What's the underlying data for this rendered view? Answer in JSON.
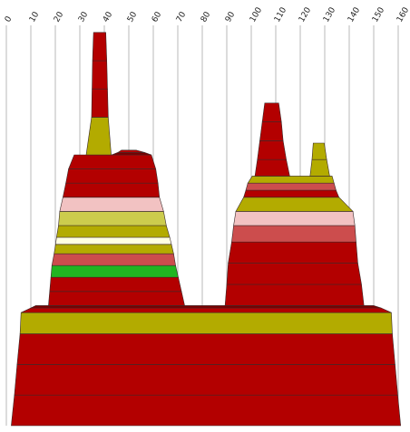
{
  "chart_data": {
    "type": "area",
    "title": "",
    "xlabel": "",
    "ylabel": "",
    "xlim": [
      0,
      160
    ],
    "x_ticks": [
      0,
      10,
      20,
      30,
      40,
      50,
      60,
      70,
      80,
      90,
      100,
      110,
      120,
      130,
      140,
      150,
      160
    ],
    "x_tick_labels": [
      "0",
      "10",
      "20",
      "30",
      "40",
      "50",
      "60",
      "70",
      "80",
      "90",
      "100",
      "110",
      "120",
      "130",
      "140",
      "150",
      "160"
    ],
    "grid": true,
    "legend": "none",
    "shapes": [
      {
        "name": "base",
        "levels": [
          {
            "y": 0,
            "x_left": 2,
            "x_right": 161,
            "color": "#b30000"
          },
          {
            "y": 13,
            "x_left": 3.3,
            "x_right": 159.8,
            "color": "#b30000"
          },
          {
            "y": 26,
            "x_left": 4.4,
            "x_right": 158.7,
            "color": "#b30000"
          },
          {
            "y": 39,
            "x_left": 5.6,
            "x_right": 157.6,
            "color": "#b3ab00"
          },
          {
            "y": 48,
            "x_left": 6.0,
            "x_right": 157.2,
            "color": "#b30000"
          },
          {
            "y": 50,
            "x_left": 10.0,
            "x_right": 153.0,
            "color": "#7a0000"
          },
          {
            "y": 51,
            "x_left": 12.0,
            "x_right": 150.0,
            "color": null
          }
        ]
      },
      {
        "name": "left-peak",
        "levels": [
          {
            "y": 51,
            "x_left": 17.2,
            "x_right": 72.8,
            "color": "#b30000"
          },
          {
            "y": 57,
            "x_left": 17.7,
            "x_right": 71.5,
            "color": "#b30000"
          },
          {
            "y": 63,
            "x_left": 18.2,
            "x_right": 70.2,
            "color": "#21b521"
          },
          {
            "y": 68,
            "x_left": 18.6,
            "x_right": 69.1,
            "color": "#cc4d4d"
          },
          {
            "y": 73,
            "x_left": 19.5,
            "x_right": 68.3,
            "color": "#b3ab00"
          },
          {
            "y": 77,
            "x_left": 20.1,
            "x_right": 67.4,
            "color": "#ffffe0"
          },
          {
            "y": 80,
            "x_left": 20.5,
            "x_right": 66.7,
            "color": "#b3ab00"
          },
          {
            "y": 85,
            "x_left": 21.3,
            "x_right": 65.3,
            "color": "#cccc4d"
          },
          {
            "y": 91,
            "x_left": 21.8,
            "x_right": 64.2,
            "color": "#f2c2c2"
          },
          {
            "y": 97,
            "x_left": 23.1,
            "x_right": 62.5,
            "color": "#b30000"
          },
          {
            "y": 103,
            "x_left": 24.3,
            "x_right": 61.9,
            "color": "#b30000"
          },
          {
            "y": 109,
            "x_left": 25.4,
            "x_right": 61.0,
            "color": "#b30000"
          },
          {
            "y": 115,
            "x_left": 27.7,
            "x_right": 59.2,
            "color": null
          }
        ]
      },
      {
        "name": "left-peak-shoulder",
        "levels": [
          {
            "y": 115,
            "x_left": 43.0,
            "x_right": 59.2,
            "color": "#7a0000"
          },
          {
            "y": 116,
            "x_left": 45.5,
            "x_right": 56.5,
            "color": "#b30000"
          },
          {
            "y": 117,
            "x_left": 47.0,
            "x_right": 53.0,
            "color": null
          }
        ]
      },
      {
        "name": "left-spire",
        "levels": [
          {
            "y": 115,
            "x_left": 32.6,
            "x_right": 42.8,
            "color": "#b3ab00"
          },
          {
            "y": 131,
            "x_left": 34.8,
            "x_right": 41.6,
            "color": "#b30000"
          },
          {
            "y": 143,
            "x_left": 35.0,
            "x_right": 41.3,
            "color": "#b30000"
          },
          {
            "y": 155,
            "x_left": 35.2,
            "x_right": 41.0,
            "color": "#b30000"
          },
          {
            "y": 167,
            "x_left": 35.6,
            "x_right": 40.6,
            "color": null
          }
        ]
      },
      {
        "name": "right-peak",
        "levels": [
          {
            "y": 51,
            "x_left": 89.3,
            "x_right": 146.0,
            "color": "#b30000"
          },
          {
            "y": 60,
            "x_left": 90.0,
            "x_right": 145.0,
            "color": "#b30000"
          },
          {
            "y": 69,
            "x_left": 90.6,
            "x_right": 143.5,
            "color": "#b30000"
          },
          {
            "y": 78,
            "x_left": 92.0,
            "x_right": 142.8,
            "color": "#cc4d4d"
          },
          {
            "y": 85,
            "x_left": 92.8,
            "x_right": 142.3,
            "color": "#f2c2c2"
          },
          {
            "y": 91,
            "x_left": 93.7,
            "x_right": 141.5,
            "color": "#b3ab00"
          },
          {
            "y": 97,
            "x_left": 96.9,
            "x_right": 135.8,
            "color": "#b30000"
          },
          {
            "y": 100,
            "x_left": 97.8,
            "x_right": 134.6,
            "color": "#cc4d4d"
          },
          {
            "y": 103,
            "x_left": 98.6,
            "x_right": 133.8,
            "color": "#b3ab00"
          },
          {
            "y": 106,
            "x_left": 100.4,
            "x_right": 133.0,
            "color": null
          }
        ]
      },
      {
        "name": "right-spire",
        "levels": [
          {
            "y": 106,
            "x_left": 101.5,
            "x_right": 115.7,
            "color": "#b30000"
          },
          {
            "y": 113,
            "x_left": 102.5,
            "x_right": 114.3,
            "color": "#b30000"
          },
          {
            "y": 121,
            "x_left": 103.5,
            "x_right": 113.0,
            "color": "#b30000"
          },
          {
            "y": 129,
            "x_left": 104.5,
            "x_right": 112.3,
            "color": "#b30000"
          },
          {
            "y": 137,
            "x_left": 105.5,
            "x_right": 111.2,
            "color": null
          }
        ]
      },
      {
        "name": "right-small-spire",
        "levels": [
          {
            "y": 106,
            "x_left": 124.0,
            "x_right": 132.0,
            "color": "#b3ab00"
          },
          {
            "y": 113,
            "x_left": 124.8,
            "x_right": 130.8,
            "color": "#b3ab00"
          },
          {
            "y": 120,
            "x_left": 125.3,
            "x_right": 129.8,
            "color": null
          }
        ]
      }
    ],
    "plot_y_range": [
      0,
      170
    ]
  }
}
